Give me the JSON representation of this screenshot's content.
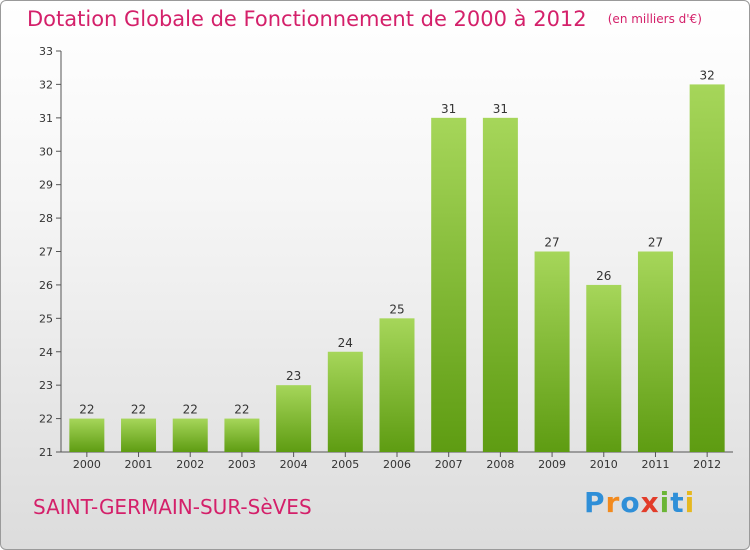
{
  "header": {
    "title": "Dotation Globale de Fonctionnement de 2000 à 2012",
    "subtitle": "(en milliers d'€)"
  },
  "footer": {
    "commune": "SAINT-GERMAIN-SUR-SèVES",
    "brand_letters": [
      "P",
      "r",
      "o",
      "x",
      "i",
      "t",
      "i"
    ]
  },
  "colors": {
    "title": "#d4206a",
    "bar_top": "#a6d65a",
    "bar_bottom": "#5e9c12",
    "brand": [
      "#2f8fd8",
      "#f28a1e",
      "#2f8fd8",
      "#e23c2a",
      "#6bb536",
      "#2f8fd8",
      "#e6b81f"
    ]
  },
  "chart_data": {
    "type": "bar",
    "title": "Dotation Globale de Fonctionnement de 2000 à 2012",
    "subtitle": "(en milliers d'€)",
    "categories": [
      "2000",
      "2001",
      "2002",
      "2003",
      "2004",
      "2005",
      "2006",
      "2007",
      "2008",
      "2009",
      "2010",
      "2011",
      "2012"
    ],
    "values": [
      22,
      22,
      22,
      22,
      23,
      24,
      25,
      31,
      31,
      27,
      26,
      27,
      32
    ],
    "ylim": [
      21,
      33
    ],
    "yticks": [
      21,
      22,
      23,
      24,
      25,
      26,
      27,
      28,
      29,
      30,
      31,
      32,
      33
    ],
    "grid": false,
    "legend": "none"
  }
}
